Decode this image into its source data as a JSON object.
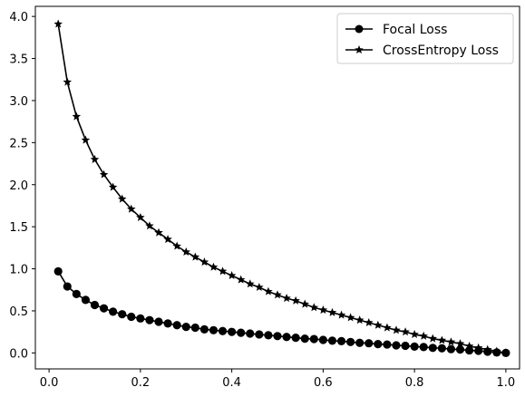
{
  "chart_data": {
    "type": "line",
    "xlim": [
      -0.03,
      1.03
    ],
    "ylim": [
      -0.19,
      4.12
    ],
    "xticks": [
      0.0,
      0.2,
      0.4,
      0.6,
      0.8,
      1.0
    ],
    "yticks": [
      0.0,
      0.5,
      1.0,
      1.5,
      2.0,
      2.5,
      3.0,
      3.5,
      4.0
    ],
    "xtick_labels": [
      "0.0",
      "0.2",
      "0.4",
      "0.6",
      "0.8",
      "1.0"
    ],
    "ytick_labels": [
      "0.0",
      "0.5",
      "1.0",
      "1.5",
      "2.0",
      "2.5",
      "3.0",
      "3.5",
      "4.0"
    ],
    "grid": false,
    "legend_position": "top-right",
    "series": [
      {
        "name": "Focal Loss",
        "marker": "circle",
        "color": "#000000",
        "x": [
          0.02,
          0.04,
          0.06,
          0.08,
          0.1,
          0.12,
          0.14,
          0.16,
          0.18,
          0.2,
          0.22,
          0.24,
          0.26,
          0.28,
          0.3,
          0.32,
          0.34,
          0.36,
          0.38,
          0.4,
          0.42,
          0.44,
          0.46,
          0.48,
          0.5,
          0.52,
          0.54,
          0.56,
          0.58,
          0.6,
          0.62,
          0.64,
          0.66,
          0.68,
          0.7,
          0.72,
          0.74,
          0.76,
          0.78,
          0.8,
          0.82,
          0.84,
          0.86,
          0.88,
          0.9,
          0.92,
          0.94,
          0.96,
          0.98,
          1.0
        ],
        "values": [
          0.97,
          0.79,
          0.7,
          0.63,
          0.57,
          0.53,
          0.49,
          0.46,
          0.43,
          0.41,
          0.39,
          0.37,
          0.35,
          0.33,
          0.31,
          0.3,
          0.28,
          0.27,
          0.26,
          0.25,
          0.24,
          0.23,
          0.22,
          0.21,
          0.2,
          0.19,
          0.18,
          0.17,
          0.165,
          0.155,
          0.145,
          0.14,
          0.13,
          0.12,
          0.115,
          0.105,
          0.1,
          0.09,
          0.085,
          0.075,
          0.07,
          0.06,
          0.055,
          0.045,
          0.04,
          0.03,
          0.025,
          0.015,
          0.005,
          0.0
        ]
      },
      {
        "name": "CrossEntropy Loss",
        "marker": "star",
        "color": "#000000",
        "x": [
          0.02,
          0.04,
          0.06,
          0.08,
          0.1,
          0.12,
          0.14,
          0.16,
          0.18,
          0.2,
          0.22,
          0.24,
          0.26,
          0.28,
          0.3,
          0.32,
          0.34,
          0.36,
          0.38,
          0.4,
          0.42,
          0.44,
          0.46,
          0.48,
          0.5,
          0.52,
          0.54,
          0.56,
          0.58,
          0.6,
          0.62,
          0.64,
          0.66,
          0.68,
          0.7,
          0.72,
          0.74,
          0.76,
          0.78,
          0.8,
          0.82,
          0.84,
          0.86,
          0.88,
          0.9,
          0.92,
          0.94,
          0.96,
          0.98,
          1.0
        ],
        "values": [
          3.91,
          3.22,
          2.81,
          2.53,
          2.3,
          2.12,
          1.97,
          1.83,
          1.71,
          1.61,
          1.51,
          1.43,
          1.35,
          1.27,
          1.2,
          1.14,
          1.08,
          1.02,
          0.97,
          0.92,
          0.87,
          0.82,
          0.78,
          0.73,
          0.69,
          0.65,
          0.62,
          0.58,
          0.54,
          0.51,
          0.48,
          0.45,
          0.42,
          0.39,
          0.36,
          0.33,
          0.3,
          0.27,
          0.25,
          0.22,
          0.2,
          0.17,
          0.15,
          0.13,
          0.11,
          0.08,
          0.06,
          0.04,
          0.02,
          0.0
        ]
      }
    ]
  }
}
